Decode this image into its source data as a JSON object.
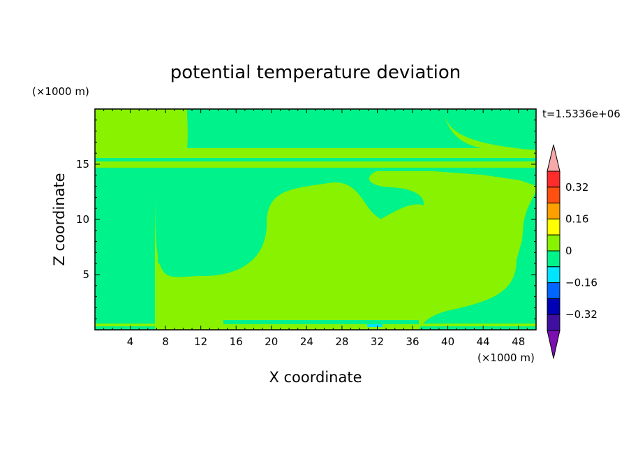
{
  "chart_data": {
    "type": "heatmap",
    "title": "potential temperature deviation",
    "time_label": "t=1.5336e+06",
    "xlabel": "X coordinate",
    "ylabel": "Z coordinate",
    "x_unit": "(×1000 m)",
    "y_unit": "(×1000 m)",
    "xlim": [
      0,
      50
    ],
    "ylim": [
      0,
      20
    ],
    "x_ticks": [
      4,
      8,
      12,
      16,
      20,
      24,
      28,
      32,
      36,
      40,
      44,
      48
    ],
    "y_ticks": [
      5,
      10,
      15
    ],
    "colorbar": {
      "levels": [
        -0.4,
        -0.32,
        -0.24,
        -0.16,
        -0.08,
        0,
        0.08,
        0.16,
        0.24,
        0.32,
        0.4
      ],
      "tick_labels": [
        "0.32",
        "0.16",
        "0",
        "−0.16",
        "−0.32"
      ],
      "tick_values": [
        0.32,
        0.16,
        0,
        -0.16,
        -0.32
      ],
      "colors": [
        "#7b0fb0",
        "#3f10a0",
        "#0000b4",
        "#0066ff",
        "#00e5ff",
        "#00f28a",
        "#88f200",
        "#ffff00",
        "#ffa000",
        "#ff5010",
        "#ff2c2c",
        "#f7a8a8"
      ]
    },
    "regions": [
      {
        "value_range": [
          0,
          0.08
        ],
        "color": "#88f200"
      },
      {
        "value_range": [
          -0.08,
          0
        ],
        "color": "#00f28a"
      },
      {
        "value_range": [
          -0.16,
          -0.08
        ],
        "color": "#00e5ff"
      }
    ]
  }
}
